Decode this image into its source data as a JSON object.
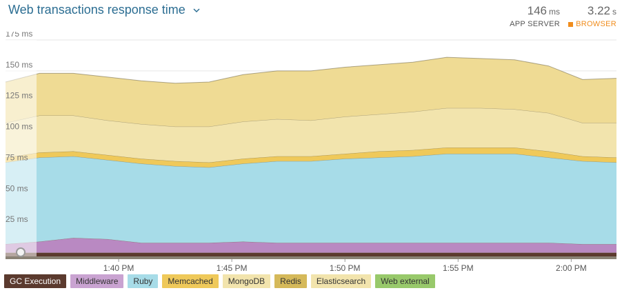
{
  "header": {
    "title": "Web transactions response time",
    "app_server_value": "146",
    "app_server_unit": "ms",
    "app_server_label": "APP SERVER",
    "browser_value": "3.22",
    "browser_unit": "s",
    "browser_label": "BROWSER",
    "accent_color": "#f08c1c"
  },
  "chart_data": {
    "type": "area",
    "title": "Web transactions response time",
    "ylabel": "",
    "ylim": [
      0,
      175
    ],
    "yticks": [
      25,
      50,
      75,
      100,
      125,
      150,
      175
    ],
    "ytick_labels": [
      "25 ms",
      "50 ms",
      "75 ms",
      "100 ms",
      "125 ms",
      "150 ms",
      "175 ms"
    ],
    "xticks": [
      "1:40 PM",
      "1:45 PM",
      "1:50 PM",
      "1:55 PM",
      "2:00 PM"
    ],
    "xtick_positions_minutes": [
      40,
      45,
      50,
      55,
      60
    ],
    "grid": true,
    "stacked": true,
    "x_minutes": [
      35.0,
      36.5,
      38.0,
      39.5,
      41.0,
      42.5,
      44.0,
      45.5,
      47.0,
      48.5,
      50.0,
      51.5,
      53.0,
      54.5,
      56.0,
      57.5,
      59.0,
      60.5,
      62.0
    ],
    "series": [
      {
        "name": "GC Execution",
        "color": "#5b3a2e",
        "values": [
          3,
          3,
          3,
          3,
          3,
          3,
          3,
          3,
          3,
          3,
          3,
          3,
          3,
          3,
          3,
          3,
          3,
          3,
          3
        ]
      },
      {
        "name": "Middleware",
        "color": "#b989c2",
        "values": [
          7,
          9,
          12,
          11,
          8,
          8,
          8,
          9,
          8,
          8,
          8,
          8,
          8,
          8,
          8,
          8,
          8,
          7,
          7
        ]
      },
      {
        "name": "Ruby",
        "color": "#a7dce8",
        "values": [
          66,
          68,
          66,
          64,
          64,
          62,
          61,
          63,
          66,
          66,
          68,
          69,
          70,
          72,
          72,
          72,
          69,
          67,
          66
        ]
      },
      {
        "name": "Memcached",
        "color": "#efc95a",
        "values": [
          4,
          4,
          4,
          4,
          4,
          4,
          4,
          4,
          4,
          4,
          4,
          5,
          5,
          5,
          5,
          5,
          5,
          4,
          4
        ]
      },
      {
        "name": "MongoDB",
        "color": "#f2e4ad",
        "values": [
          28,
          30,
          29,
          28,
          28,
          28,
          29,
          30,
          30,
          29,
          30,
          30,
          31,
          32,
          32,
          31,
          31,
          27,
          28
        ]
      },
      {
        "name": "Redis",
        "color": "#d5b95a",
        "values": [
          0,
          0,
          0,
          0,
          0,
          0,
          0,
          0,
          0,
          0,
          0,
          0,
          0,
          0,
          0,
          0,
          0,
          0,
          0
        ]
      },
      {
        "name": "Elasticsearch",
        "color": "#efdb94",
        "values": [
          33,
          34,
          34,
          35,
          35,
          35,
          36,
          38,
          39,
          40,
          40,
          40,
          40,
          41,
          40,
          40,
          38,
          35,
          36
        ]
      },
      {
        "name": "Web external",
        "color": "#98c96b",
        "values": [
          0,
          0,
          0,
          0,
          0,
          0,
          0,
          0,
          0,
          0,
          0,
          0,
          0,
          0,
          0,
          0,
          0,
          0,
          0
        ]
      }
    ]
  },
  "legend": [
    {
      "label": "GC Execution",
      "bg": "#5b3a2e",
      "fg": "#ffffff"
    },
    {
      "label": "Middleware",
      "bg": "#c9a3d1",
      "fg": "#333333"
    },
    {
      "label": "Ruby",
      "bg": "#a7dce8",
      "fg": "#333333"
    },
    {
      "label": "Memcached",
      "bg": "#efc95a",
      "fg": "#333333"
    },
    {
      "label": "MongoDB",
      "bg": "#f2e4ad",
      "fg": "#333333"
    },
    {
      "label": "Redis",
      "bg": "#d5b95a",
      "fg": "#333333"
    },
    {
      "label": "Elasticsearch",
      "bg": "#f2e4ad",
      "fg": "#333333"
    },
    {
      "label": "Web external",
      "bg": "#98c96b",
      "fg": "#333333"
    }
  ]
}
